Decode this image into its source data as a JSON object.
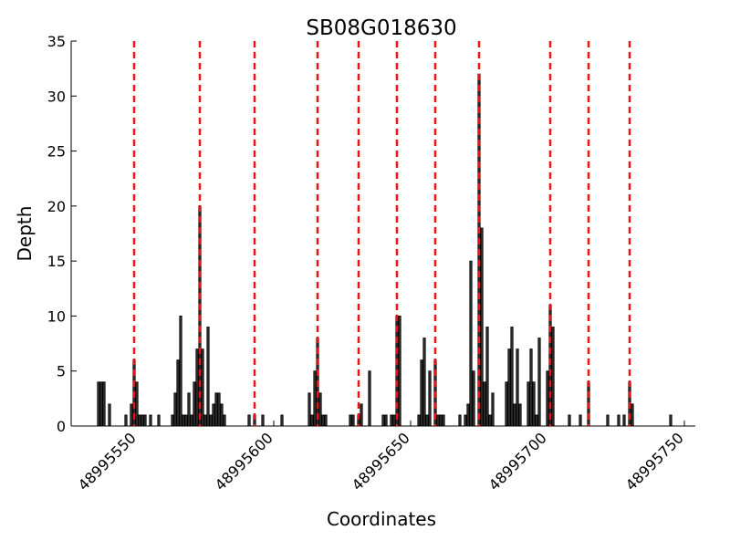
{
  "chart_data": {
    "type": "bar",
    "title": "SB08G018630",
    "x_label": "Coordinates",
    "y_label": "Depth",
    "x": [
      48995536,
      48995537,
      48995538,
      48995540,
      48995546,
      48995548,
      48995549,
      48995550,
      48995551,
      48995552,
      48995553,
      48995555,
      48995558,
      48995563,
      48995564,
      48995565,
      48995566,
      48995567,
      48995568,
      48995569,
      48995570,
      48995571,
      48995572,
      48995573,
      48995574,
      48995575,
      48995576,
      48995577,
      48995578,
      48995579,
      48995580,
      48995581,
      48995582,
      48995591,
      48995593,
      48995596,
      48995603,
      48995613,
      48995614,
      48995615,
      48995616,
      48995617,
      48995618,
      48995619,
      48995628,
      48995629,
      48995631,
      48995632,
      48995635,
      48995640,
      48995641,
      48995643,
      48995644,
      48995645,
      48995646,
      48995653,
      48995654,
      48995655,
      48995656,
      48995657,
      48995659,
      48995660,
      48995661,
      48995662,
      48995668,
      48995670,
      48995671,
      48995672,
      48995673,
      48995675,
      48995676,
      48995677,
      48995678,
      48995679,
      48995680,
      48995685,
      48995686,
      48995687,
      48995688,
      48995689,
      48995690,
      48995693,
      48995694,
      48995695,
      48995696,
      48995697,
      48995700,
      48995701,
      48995702,
      48995708,
      48995712,
      48995715,
      48995722,
      48995726,
      48995728,
      48995730,
      48995731,
      48995745
    ],
    "values": [
      4,
      4,
      4,
      2,
      1,
      2,
      6,
      4,
      1,
      1,
      1,
      1,
      1,
      1,
      3,
      6,
      10,
      1,
      1,
      3,
      1,
      4,
      7,
      20,
      7,
      1,
      9,
      1,
      2,
      3,
      3,
      2,
      1,
      1,
      1,
      1,
      1,
      3,
      1,
      5,
      8,
      3,
      1,
      1,
      1,
      1,
      1,
      2,
      5,
      1,
      1,
      1,
      1,
      10,
      10,
      1,
      6,
      8,
      1,
      5,
      6,
      1,
      1,
      1,
      1,
      1,
      2,
      15,
      5,
      32,
      18,
      4,
      9,
      1,
      3,
      4,
      7,
      9,
      2,
      7,
      2,
      4,
      7,
      4,
      1,
      8,
      5,
      11,
      9,
      1,
      1,
      4,
      1,
      1,
      1,
      4,
      2,
      1
    ],
    "color": "#333333",
    "vlines": {
      "x": [
        48995549,
        48995573,
        48995593,
        48995616,
        48995631,
        48995645,
        48995659,
        48995675,
        48995701,
        48995715,
        48995730
      ],
      "color": "#ee1111"
    },
    "xlim": [
      48995526,
      48995754
    ],
    "xticks": [
      48995550,
      48995600,
      48995650,
      48995700,
      48995750
    ],
    "ylim": [
      0,
      35
    ],
    "yticks": [
      0,
      5,
      10,
      15,
      20,
      25,
      30,
      35
    ]
  }
}
